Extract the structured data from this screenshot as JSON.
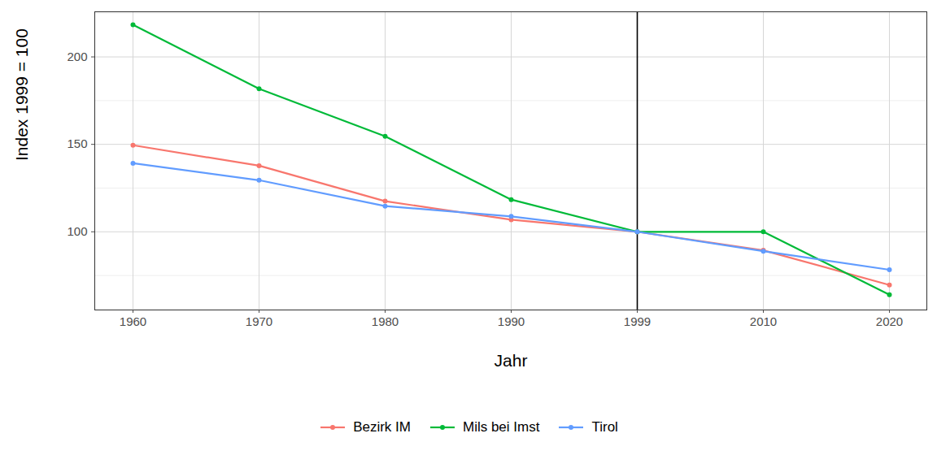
{
  "chart_data": {
    "type": "line",
    "x_label": "Jahr",
    "y_label": "Index 1999 = 100",
    "categories": [
      "1960",
      "1970",
      "1980",
      "1990",
      "1999",
      "2010",
      "2020"
    ],
    "series": [
      {
        "name": "Bezirk IM",
        "color": "#F8766D",
        "values": [
          149.5,
          137.8,
          117.5,
          106.9,
          100,
          89.4,
          69.6
        ]
      },
      {
        "name": "Mils bei Imst",
        "color": "#00BA38",
        "values": [
          218.4,
          181.8,
          154.6,
          118.4,
          100,
          100,
          64
        ]
      },
      {
        "name": "Tirol",
        "color": "#619CFF",
        "values": [
          139.2,
          129.5,
          114.7,
          108.8,
          100,
          88.9,
          78.3
        ]
      }
    ],
    "ylim": [
      55.3,
      225.8
    ],
    "yticks": [
      100,
      150,
      200
    ],
    "reference_line": {
      "x": "1999",
      "color": "#000000"
    },
    "grid": true,
    "legend": "bottom",
    "marker": "circle",
    "line_style": "solid"
  }
}
